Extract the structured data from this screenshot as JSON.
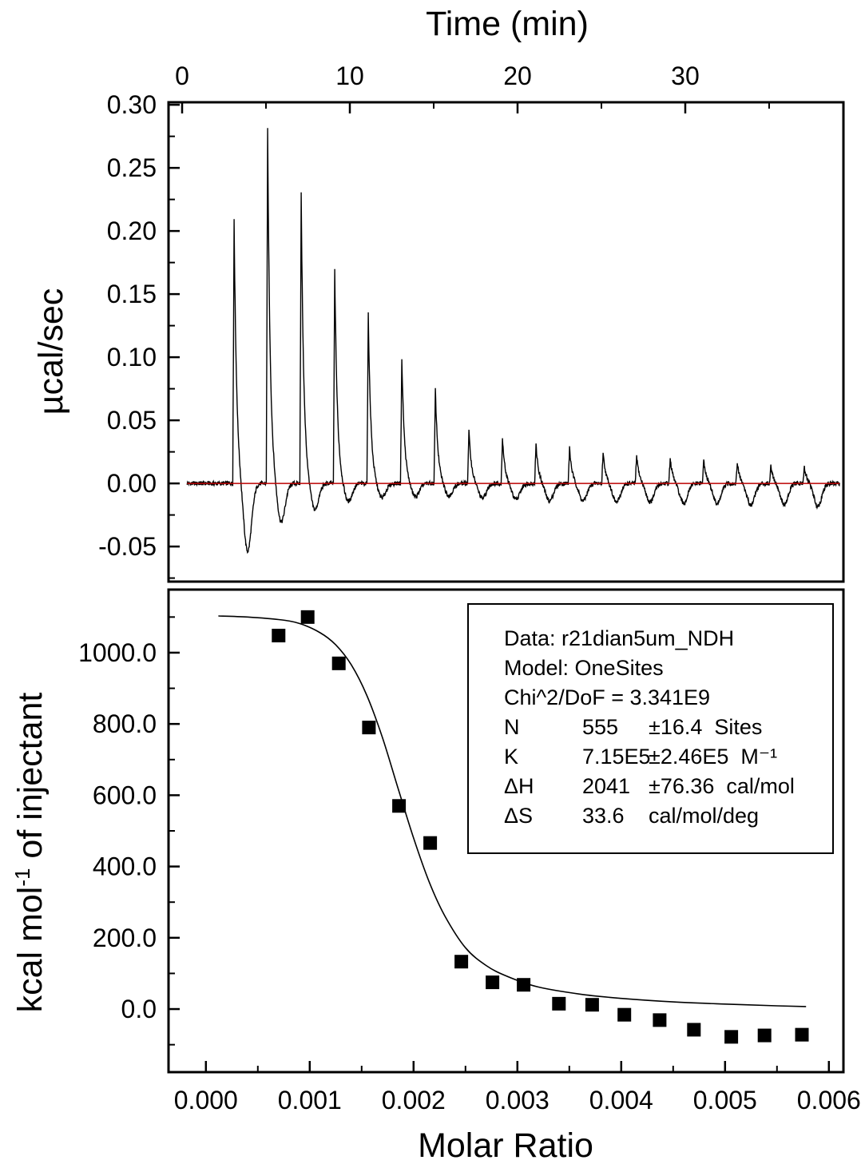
{
  "chart_data": [
    {
      "type": "line",
      "panel": "raw-heat-thermogram",
      "title": "Time (min)",
      "ylabel": "µcal/sec",
      "xlim": [
        -0.81,
        39.43
      ],
      "ylim": [
        -0.0778,
        0.302
      ],
      "xticks": [
        0,
        10,
        20,
        30
      ],
      "xtick_labels": [
        "0",
        "10",
        "20",
        "30"
      ],
      "yticks": [
        0.3,
        0.25,
        0.2,
        0.15,
        0.1,
        0.05,
        0.0,
        -0.05
      ],
      "ytick_labels": [
        "0.30",
        "0.25",
        "0.20",
        "0.15",
        "0.10",
        "0.05",
        "0.00",
        "-0.05"
      ],
      "line_color": "#000000",
      "baseline_color": "#bb0000",
      "baseline_value": 0.0,
      "injections": {
        "times": [
          3.1,
          5.1,
          7.1,
          9.1,
          11.1,
          13.1,
          15.1,
          17.1,
          19.1,
          21.1,
          23.1,
          25.1,
          27.1,
          29.1,
          31.1,
          33.1,
          35.1,
          37.1
        ],
        "peak_heights": [
          0.21,
          0.28,
          0.23,
          0.17,
          0.135,
          0.1,
          0.075,
          0.042,
          0.036,
          0.031,
          0.028,
          0.025,
          0.022,
          0.02,
          0.018,
          0.016,
          0.014,
          0.013
        ],
        "undershoots": [
          -0.055,
          -0.032,
          -0.022,
          -0.015,
          -0.012,
          -0.011,
          -0.01,
          -0.012,
          -0.013,
          -0.014,
          -0.014,
          -0.015,
          -0.015,
          -0.016,
          -0.016,
          -0.017,
          -0.017,
          -0.018
        ]
      }
    },
    {
      "type": "scatter",
      "panel": "binding-isotherm",
      "xlabel": "Molar Ratio",
      "ylabel_prefix": "kcal mol",
      "ylabel_sup": "-1",
      "ylabel_suffix": " of injectant",
      "xlim": [
        -0.00036,
        0.00614
      ],
      "ylim": [
        -177,
        1177
      ],
      "xticks": [
        0,
        0.001,
        0.002,
        0.003,
        0.004,
        0.005,
        0.006
      ],
      "xtick_labels": [
        "0.000",
        "0.001",
        "0.002",
        "0.003",
        "0.004",
        "0.005",
        "0.006"
      ],
      "yticks": [
        1000,
        800,
        600,
        400,
        200,
        0
      ],
      "ytick_labels": [
        "1000.0",
        "800.0",
        "600.0",
        "400.0",
        "200.0",
        "0.0"
      ],
      "marker": "filled-square",
      "marker_color": "#000000",
      "fit_color": "#000000",
      "points": {
        "x": [
          0.0007,
          0.00098,
          0.00128,
          0.00157,
          0.00186,
          0.00216,
          0.00246,
          0.00276,
          0.00306,
          0.0034,
          0.00372,
          0.00403,
          0.00437,
          0.0047,
          0.00506,
          0.00538,
          0.00574
        ],
        "y": [
          1048,
          1100,
          970,
          790,
          570,
          466,
          133,
          75,
          68,
          15,
          12,
          -16,
          -31,
          -58,
          -78,
          -74,
          -72
        ]
      },
      "fit_curve": {
        "x": [
          0.00012,
          0.0004,
          0.0007,
          0.0009,
          0.0011,
          0.00125,
          0.0014,
          0.00155,
          0.0017,
          0.00185,
          0.002,
          0.00215,
          0.0023,
          0.0025,
          0.0027,
          0.0029,
          0.0032,
          0.0036,
          0.004,
          0.0045,
          0.005,
          0.0055,
          0.00578
        ],
        "y": [
          1103,
          1100,
          1093,
          1082,
          1056,
          1022,
          966,
          880,
          762,
          620,
          480,
          357,
          262,
          172,
          122,
          92,
          62,
          42,
          30,
          20,
          14,
          9,
          7
        ]
      },
      "stats": {
        "data_line": "Data: r21dian5um_NDH",
        "model_line": "Model: OneSites",
        "chi_line": "Chi^2/DoF = 3.341E9",
        "rows": [
          {
            "param": "N",
            "value": "555",
            "error_unit": "±16.4  Sites"
          },
          {
            "param": "K",
            "value": "7.15E5",
            "error_unit": "±2.46E5  M⁻¹"
          },
          {
            "param": "ΔH",
            "value": "2041",
            "error_unit": "±76.36  cal/mol"
          },
          {
            "param": "ΔS",
            "value": "33.6",
            "error_unit": "cal/mol/deg"
          }
        ]
      }
    }
  ]
}
